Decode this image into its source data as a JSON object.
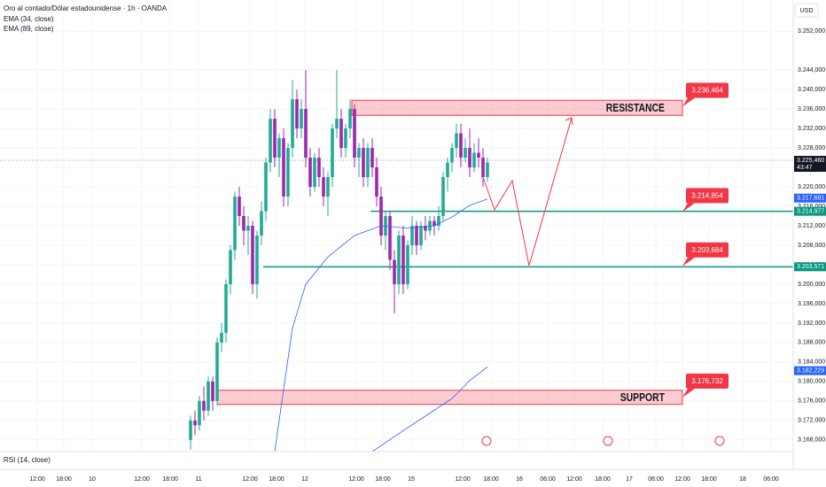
{
  "chart_data": {
    "type": "candlestick",
    "title": "Oro al contado/Dólar estadounidense · 1h · OANDA",
    "indicators": [
      "EMA (34, close)",
      "EMA (89, close)"
    ],
    "currency": "USD",
    "lower_pane": "RSI (14, close)",
    "countdown": "43:47",
    "up_color": "#22ab94",
    "down_color": "#9c27b0",
    "xlim": [
      0,
      179
    ],
    "ylim": [
      3165.6,
      3258.4
    ],
    "grid": true,
    "yticks": [
      {
        "value": 3168,
        "label": "3.168,000"
      },
      {
        "value": 3172,
        "label": "3.172,000"
      },
      {
        "value": 3176,
        "label": "3.176,000"
      },
      {
        "value": 3180,
        "label": "3.180,000"
      },
      {
        "value": 3184,
        "label": "3.184,000"
      },
      {
        "value": 3188,
        "label": "3.188,000"
      },
      {
        "value": 3192,
        "label": "3.192,000"
      },
      {
        "value": 3196,
        "label": "3.196,000"
      },
      {
        "value": 3200,
        "label": "3.200,000"
      },
      {
        "value": 3204,
        "label": "3.204,000"
      },
      {
        "value": 3208,
        "label": "3.208,000"
      },
      {
        "value": 3212,
        "label": "3.212,000"
      },
      {
        "value": 3216,
        "label": "3.216,000"
      },
      {
        "value": 3220,
        "label": "3.220,000"
      },
      {
        "value": 3224,
        "label": "3.224,000"
      },
      {
        "value": 3228,
        "label": "3.228,000"
      },
      {
        "value": 3232,
        "label": "3.232,000"
      },
      {
        "value": 3236,
        "label": "3.236,000"
      },
      {
        "value": 3240,
        "label": "3.240,000"
      },
      {
        "value": 3244,
        "label": "3.244,000"
      },
      {
        "value": 3252,
        "label": "3.252,000"
      }
    ],
    "xticks": [
      {
        "value": 8.4,
        "label": "12:00"
      },
      {
        "value": 14.4,
        "label": "18:00"
      },
      {
        "value": 20.8,
        "label": "10"
      },
      {
        "value": 32,
        "label": "12:00"
      },
      {
        "value": 38.4,
        "label": "18:00"
      },
      {
        "value": 44.8,
        "label": "11"
      },
      {
        "value": 56.4,
        "label": "12:00"
      },
      {
        "value": 62.4,
        "label": "18:00"
      },
      {
        "value": 68.8,
        "label": "12"
      },
      {
        "value": 80.4,
        "label": "12:00"
      },
      {
        "value": 86.4,
        "label": "18:00"
      },
      {
        "value": 92.8,
        "label": "15"
      },
      {
        "value": 104.4,
        "label": "12:00"
      },
      {
        "value": 110.8,
        "label": "18:00"
      },
      {
        "value": 117.2,
        "label": "16"
      },
      {
        "value": 123.6,
        "label": "06:00"
      },
      {
        "value": 129.6,
        "label": "12:00"
      },
      {
        "value": 136,
        "label": "18:00"
      },
      {
        "value": 142,
        "label": "17"
      },
      {
        "value": 148,
        "label": "06:00"
      },
      {
        "value": 154,
        "label": "12:00"
      },
      {
        "value": 160,
        "label": "18:00"
      },
      {
        "value": 167.6,
        "label": "18"
      },
      {
        "value": 174,
        "label": "06:00"
      }
    ],
    "x": [
      43,
      44,
      45,
      46,
      47,
      48,
      49,
      50,
      51,
      52,
      53,
      54,
      55,
      56,
      57,
      58,
      59,
      60,
      61,
      62,
      63,
      64,
      65,
      66,
      67,
      68,
      69,
      70,
      71,
      72,
      73,
      74,
      75,
      76,
      77,
      78,
      79,
      80,
      81,
      82,
      83,
      84,
      85,
      86,
      87,
      88,
      89,
      90,
      91,
      92,
      93,
      94,
      95,
      96,
      97,
      98,
      99,
      100,
      101,
      102,
      103,
      104,
      105,
      106,
      107,
      108,
      109,
      110
    ],
    "open": [
      3168,
      3172,
      3171,
      3176,
      3174,
      3180,
      3176,
      3188,
      3190,
      3200,
      3207,
      3218,
      3214,
      3211,
      3212,
      3200,
      3210,
      3215,
      3225,
      3234,
      3226,
      3230,
      3218,
      3228,
      3238,
      3232,
      3236,
      3226,
      3220,
      3226,
      3222,
      3218,
      3222,
      3232,
      3234,
      3228,
      3232,
      3236,
      3226,
      3228,
      3222,
      3228,
      3224,
      3218,
      3210,
      3214,
      3205,
      3200,
      3210,
      3200,
      3208,
      3212,
      3208,
      3212,
      3211,
      3213,
      3212,
      3214,
      3222,
      3225,
      3228,
      3231,
      3226,
      3228,
      3224,
      3227,
      3226,
      3222
    ],
    "high": [
      3173,
      3174,
      3177,
      3179,
      3181,
      3181,
      3189,
      3192,
      3201,
      3208,
      3219,
      3220,
      3216,
      3214,
      3213,
      3211,
      3217,
      3226,
      3236,
      3236,
      3231,
      3232,
      3229,
      3242,
      3240,
      3238,
      3244,
      3228,
      3227,
      3228,
      3224,
      3223,
      3233,
      3244,
      3236,
      3233,
      3238,
      3237,
      3229,
      3230,
      3229,
      3230,
      3226,
      3220,
      3215,
      3215,
      3207,
      3211,
      3212,
      3209,
      3214,
      3213,
      3213,
      3214,
      3214,
      3214,
      3216,
      3223,
      3226,
      3229,
      3233,
      3233,
      3230,
      3232,
      3229,
      3230,
      3228,
      3226
    ],
    "low": [
      3166,
      3169,
      3170,
      3172,
      3173,
      3174,
      3175,
      3186,
      3188,
      3198,
      3205,
      3212,
      3208,
      3206,
      3198,
      3197,
      3208,
      3213,
      3223,
      3224,
      3222,
      3216,
      3216,
      3226,
      3230,
      3230,
      3224,
      3218,
      3219,
      3220,
      3216,
      3214,
      3220,
      3230,
      3226,
      3226,
      3230,
      3224,
      3222,
      3220,
      3220,
      3222,
      3216,
      3208,
      3207,
      3203,
      3194,
      3198,
      3198,
      3199,
      3206,
      3206,
      3207,
      3209,
      3210,
      3210,
      3211,
      3213,
      3219,
      3223,
      3226,
      3224,
      3225,
      3222,
      3223,
      3224,
      3220,
      3221
    ],
    "close": [
      3172,
      3171,
      3176,
      3174,
      3180,
      3176,
      3188,
      3190,
      3200,
      3207,
      3218,
      3214,
      3211,
      3212,
      3200,
      3210,
      3215,
      3225,
      3234,
      3226,
      3230,
      3218,
      3228,
      3238,
      3232,
      3236,
      3226,
      3220,
      3226,
      3222,
      3218,
      3222,
      3232,
      3234,
      3228,
      3232,
      3236,
      3226,
      3228,
      3222,
      3228,
      3224,
      3218,
      3210,
      3214,
      3205,
      3200,
      3210,
      3200,
      3208,
      3212,
      3208,
      3212,
      3211,
      3213,
      3212,
      3214,
      3222,
      3225,
      3228,
      3231,
      3226,
      3228,
      3224,
      3227,
      3226,
      3222,
      3225
    ],
    "series": [
      {
        "name": "EMA (34, close)",
        "color": "#2962ff",
        "x": [
          62,
          64,
          66,
          69,
          74,
          80,
          86,
          92,
          98,
          102,
          106,
          110
        ],
        "values": [
          3165.6,
          3178.4,
          3191,
          3200,
          3205.6,
          3210,
          3212,
          3211.5,
          3212,
          3213.8,
          3216.2,
          3217.5
        ]
      },
      {
        "name": "EMA (89, close)",
        "color": "#2962ff",
        "x": [
          84,
          90,
          96,
          102,
          106,
          110
        ],
        "values": [
          3165.6,
          3169.3,
          3172.9,
          3176.5,
          3180.2,
          3183
        ]
      }
    ],
    "zones": [
      {
        "label": "RESISTANCE",
        "x": [
          79.4,
          154
        ],
        "y": [
          3234.7,
          3237.8
        ]
      },
      {
        "label": "SUPPORT",
        "x": [
          49,
          154
        ],
        "y": [
          3175.3,
          3178.2
        ]
      }
    ],
    "levels": [
      {
        "value": 3214.977,
        "x": 83.6
      },
      {
        "value": 3203.571,
        "x": 59.4
      }
    ],
    "callouts": [
      {
        "value": 3236.464,
        "label": "3.236,464"
      },
      {
        "value": 3214.854,
        "label": "3.214,854"
      },
      {
        "value": 3203.684,
        "label": "3.203,684"
      },
      {
        "value": 3176.732,
        "label": "3.176,732"
      }
    ],
    "price_badges": [
      {
        "value": 3225.46,
        "label": "3.225,460",
        "color": "#131722"
      },
      {
        "value": 3217.691,
        "label": "3.217,691",
        "color": "#2962ff"
      },
      {
        "value": 3214.977,
        "label": "3.214,977",
        "color": "#089981"
      },
      {
        "value": 3203.571,
        "label": "3.203,571",
        "color": "#089981"
      },
      {
        "value": 3182.229,
        "label": "3.182,229",
        "color": "#2962ff"
      }
    ]
  }
}
